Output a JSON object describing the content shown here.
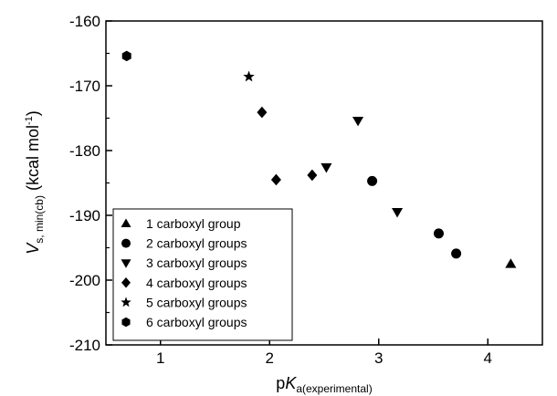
{
  "chart_data": {
    "type": "scatter",
    "xlim": [
      0.5,
      4.5
    ],
    "ylim": [
      -210,
      -160
    ],
    "x_ticks": [
      "1",
      "2",
      "3",
      "4"
    ],
    "y_ticks": [
      "-160",
      "-170",
      "-180",
      "-190",
      "-200",
      "-210"
    ],
    "xlabel": {
      "main": "p",
      "italic": "K",
      "subscript": "a(experimental)"
    },
    "ylabel": {
      "italic": "V",
      "subscript": "s, min(cb)",
      "unit": " (kcal mol",
      "superscript": "-1",
      "close": ")"
    },
    "grid": false,
    "legend_position": "bottom-left",
    "series": [
      {
        "name": "1 carboxyl group",
        "marker": "triangle-up",
        "x": [
          4.21
        ],
        "y": [
          -197.5
        ]
      },
      {
        "name": "2 carboxyl groups",
        "marker": "circle",
        "x": [
          2.94,
          3.55,
          3.71
        ],
        "y": [
          -184.7,
          -192.8,
          -195.9
        ]
      },
      {
        "name": "3 carboxyl groups",
        "marker": "triangle-down",
        "x": [
          2.52,
          2.81,
          3.17
        ],
        "y": [
          -182.6,
          -175.4,
          -189.5
        ]
      },
      {
        "name": "4 carboxyl groups",
        "marker": "diamond",
        "x": [
          1.93,
          2.06,
          2.39
        ],
        "y": [
          -174.1,
          -184.5,
          -183.8
        ]
      },
      {
        "name": "5 carboxyl groups",
        "marker": "star",
        "x": [
          1.81
        ],
        "y": [
          -168.6
        ]
      },
      {
        "name": "6 carboxyl groups",
        "marker": "hexagon",
        "x": [
          0.69
        ],
        "y": [
          -165.4
        ]
      }
    ]
  }
}
